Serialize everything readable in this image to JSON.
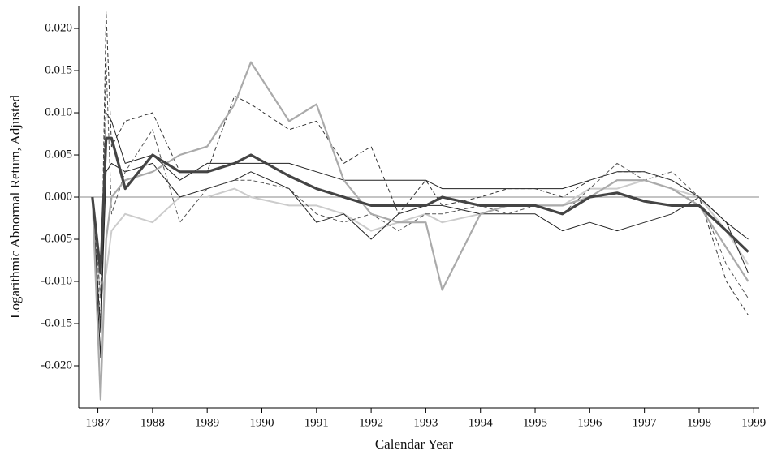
{
  "chart_data": {
    "type": "line",
    "x_label": "Calendar Year",
    "y_label": "Logarithmic Abnormal Return, Adjusted",
    "x": [
      1986.9,
      1987.05,
      1987.15,
      1987.25,
      1987.5,
      1988,
      1988.5,
      1989,
      1989.5,
      1989.8,
      1990.5,
      1991,
      1991.5,
      1992,
      1992.5,
      1993,
      1993.3,
      1994,
      1994.5,
      1995,
      1995.5,
      1996,
      1996.5,
      1997,
      1997.5,
      1998,
      1998.5,
      1998.9
    ],
    "xlim": [
      1986.65,
      1999.1
    ],
    "xticks": [
      1987,
      1988,
      1989,
      1990,
      1991,
      1992,
      1993,
      1994,
      1995,
      1996,
      1997,
      1998,
      1999
    ],
    "ylim": [
      -0.025,
      0.0226
    ],
    "yticks": [
      {
        "value": -0.02,
        "label": "-0.020"
      },
      {
        "value": -0.015,
        "label": "-0.015"
      },
      {
        "value": -0.01,
        "label": "-0.010"
      },
      {
        "value": -0.005,
        "label": "-0.005"
      },
      {
        "value": 0,
        "label": "0.000"
      },
      {
        "value": 0.005,
        "label": "0.005"
      },
      {
        "value": 0.01,
        "label": "0.010"
      },
      {
        "value": 0.015,
        "label": "0.015"
      },
      {
        "value": 0.02,
        "label": "0.020"
      }
    ],
    "zero_line": true,
    "series": [
      {
        "color": "#cccccc",
        "width": 2,
        "dash": false,
        "values": [
          0,
          -0.012,
          -0.009,
          -0.004,
          -0.002,
          -0.003,
          0.0,
          0.0,
          0.001,
          0.0,
          -0.001,
          -0.001,
          -0.002,
          -0.004,
          -0.003,
          -0.002,
          -0.003,
          -0.002,
          -0.001,
          -0.001,
          -0.001,
          0.001,
          0.001,
          0.002,
          0.001,
          0.0,
          -0.004,
          -0.008
        ]
      },
      {
        "color": "#222222",
        "width": 1,
        "dash": false,
        "values": [
          0,
          -0.019,
          0.01,
          0.009,
          0.004,
          0.005,
          0.002,
          0.004,
          0.004,
          0.004,
          0.004,
          0.003,
          0.002,
          0.002,
          0.002,
          0.002,
          0.001,
          0.001,
          0.001,
          0.001,
          0.001,
          0.002,
          0.003,
          0.003,
          0.002,
          0.0,
          -0.003,
          -0.005
        ]
      },
      {
        "color": "#222222",
        "width": 1,
        "dash": false,
        "values": [
          0,
          -0.016,
          0.003,
          0.004,
          0.003,
          0.004,
          0.0,
          0.001,
          0.002,
          0.003,
          0.001,
          -0.003,
          -0.002,
          -0.005,
          -0.002,
          -0.001,
          -0.001,
          -0.002,
          -0.002,
          -0.002,
          -0.004,
          -0.003,
          -0.004,
          -0.003,
          -0.002,
          0.0,
          -0.003,
          -0.009
        ]
      },
      {
        "color": "#333333",
        "width": 1,
        "dash": true,
        "values": [
          0,
          -0.015,
          0.022,
          0.006,
          0.009,
          0.01,
          0.003,
          0.003,
          0.012,
          0.011,
          0.008,
          0.009,
          0.004,
          0.006,
          -0.002,
          0.002,
          -0.001,
          0.0,
          0.001,
          0.001,
          0.0,
          0.002,
          0.003,
          0.003,
          0.002,
          0.0,
          -0.01,
          -0.014
        ]
      },
      {
        "color": "#555555",
        "width": 1,
        "dash": true,
        "values": [
          0,
          -0.012,
          0.016,
          -0.002,
          0.003,
          0.008,
          -0.003,
          0.001,
          0.002,
          0.002,
          0.001,
          -0.002,
          -0.003,
          -0.002,
          -0.004,
          -0.002,
          -0.002,
          -0.001,
          -0.002,
          -0.001,
          -0.002,
          0.001,
          0.004,
          0.002,
          0.003,
          0.0,
          -0.008,
          -0.012
        ]
      },
      {
        "color": "#aaaaaa",
        "width": 2.2,
        "dash": false,
        "values": [
          0,
          -0.024,
          -0.005,
          0.0,
          0.002,
          0.003,
          0.005,
          0.006,
          0.011,
          0.016,
          0.009,
          0.011,
          0.002,
          -0.002,
          -0.003,
          -0.003,
          -0.011,
          -0.002,
          -0.001,
          -0.001,
          -0.001,
          0.0,
          0.002,
          0.002,
          0.001,
          -0.001,
          -0.006,
          -0.01
        ]
      },
      {
        "color": "#444444",
        "width": 3.2,
        "dash": false,
        "values": [
          0,
          -0.009,
          0.007,
          0.007,
          0.001,
          0.005,
          0.003,
          0.003,
          0.004,
          0.005,
          0.0025,
          0.001,
          0.0,
          -0.001,
          -0.001,
          -0.001,
          0.0,
          -0.001,
          -0.001,
          -0.001,
          -0.002,
          0.0,
          0.0005,
          -0.0005,
          -0.001,
          -0.001,
          -0.004,
          -0.0065
        ]
      }
    ]
  }
}
